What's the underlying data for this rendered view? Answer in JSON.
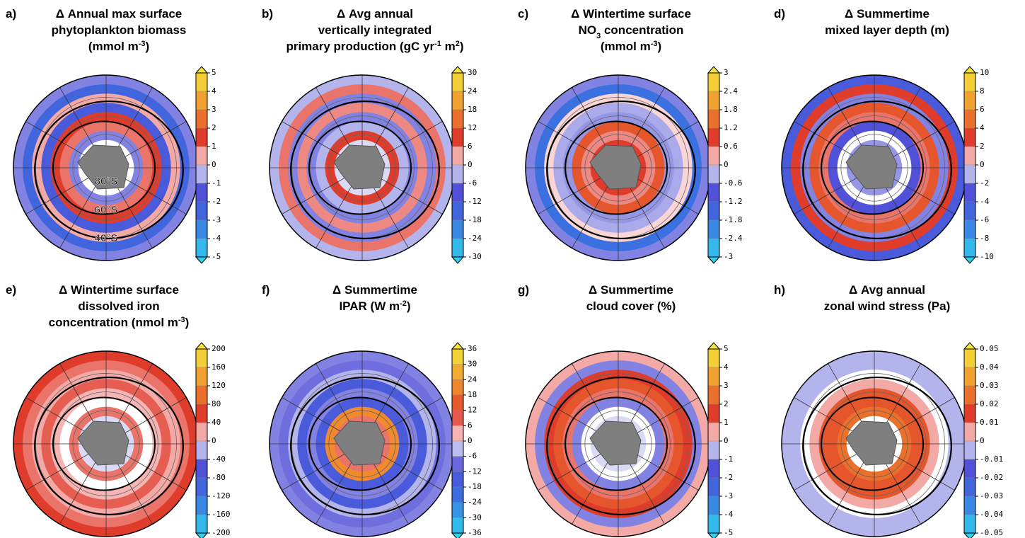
{
  "panels": [
    {
      "letter": "a)",
      "title": [
        [
          {
            "text": "Δ  Annual max surface"
          }
        ],
        [
          {
            "text": "phytoplankton biomass"
          }
        ],
        [
          {
            "text": "(mmol m"
          },
          {
            "sup": "-3"
          },
          {
            "text": ")"
          }
        ]
      ],
      "colorbar_ticks": [
        "5",
        "4",
        "3",
        "2",
        "1",
        "0",
        "-1",
        "-2",
        "-3",
        "-4",
        "-5"
      ],
      "map_labels": [
        "80°S",
        "60°S",
        "40°S"
      ]
    },
    {
      "letter": "b)",
      "title": [
        [
          {
            "text": "Δ Avg annual"
          }
        ],
        [
          {
            "text": "vertically integrated"
          }
        ],
        [
          {
            "text": "primary production (gC yr"
          },
          {
            "sup": "-1"
          },
          {
            "text": " m"
          },
          {
            "sup": "2"
          },
          {
            "text": ")"
          }
        ]
      ],
      "colorbar_ticks": [
        "30",
        "24",
        "18",
        "12",
        "6",
        "0",
        "-6",
        "-12",
        "-18",
        "-24",
        "-30"
      ]
    },
    {
      "letter": "c)",
      "title": [
        [
          {
            "text": "Δ Wintertime surface"
          }
        ],
        [
          {
            "text": "NO"
          },
          {
            "sub": "3"
          },
          {
            "text": " concentration"
          }
        ],
        [
          {
            "text": "(mmol m"
          },
          {
            "sup": "-3"
          },
          {
            "text": ")"
          }
        ]
      ],
      "colorbar_ticks": [
        "3",
        "2.4",
        "1.8",
        "1.2",
        "0.6",
        "0",
        "-0.6",
        "-1.2",
        "-1.8",
        "-2.4",
        "-3"
      ]
    },
    {
      "letter": "d)",
      "title": [
        [
          {
            "text": "Δ Summertime"
          }
        ],
        [
          {
            "text": "mixed layer depth (m)"
          }
        ]
      ],
      "colorbar_ticks": [
        "10",
        "8",
        "6",
        "4",
        "2",
        "0",
        "-2",
        "-4",
        "-6",
        "-8",
        "-10"
      ]
    },
    {
      "letter": "e)",
      "title": [
        [
          {
            "text": "Δ Wintertime surface"
          }
        ],
        [
          {
            "text": "dissolved iron"
          }
        ],
        [
          {
            "text": "concentration (nmol m"
          },
          {
            "sup": "-3"
          },
          {
            "text": ")"
          }
        ]
      ],
      "colorbar_ticks": [
        "200",
        "160",
        "120",
        "80",
        "40",
        "0",
        "-40",
        "-80",
        "-120",
        "-160",
        "-200"
      ]
    },
    {
      "letter": "f)",
      "title": [
        [
          {
            "text": "Δ Summertime"
          }
        ],
        [
          {
            "text": "IPAR (W m"
          },
          {
            "sup": "-2"
          },
          {
            "text": ")"
          }
        ]
      ],
      "colorbar_ticks": [
        "36",
        "30",
        "24",
        "18",
        "12",
        "6",
        "0",
        "-6",
        "-12",
        "-18",
        "-24",
        "-30",
        "-36"
      ]
    },
    {
      "letter": "g)",
      "title": [
        [
          {
            "text": "Δ Summertime"
          }
        ],
        [
          {
            "text": "cloud cover (%)"
          }
        ]
      ],
      "colorbar_ticks": [
        "5",
        "4",
        "3",
        "2",
        "1",
        "0",
        "-1",
        "-2",
        "-3",
        "-4",
        "-5"
      ]
    },
    {
      "letter": "h)",
      "title": [
        [
          {
            "text": "Δ Avg annual"
          }
        ],
        [
          {
            "text": "zonal wind stress (Pa)"
          }
        ]
      ],
      "colorbar_ticks": [
        "0.05",
        "0.04",
        "0.03",
        "0.02",
        "0.01",
        "0",
        "-0.01",
        "-0.02",
        "-0.03",
        "-0.04",
        "-0.05"
      ]
    }
  ]
}
